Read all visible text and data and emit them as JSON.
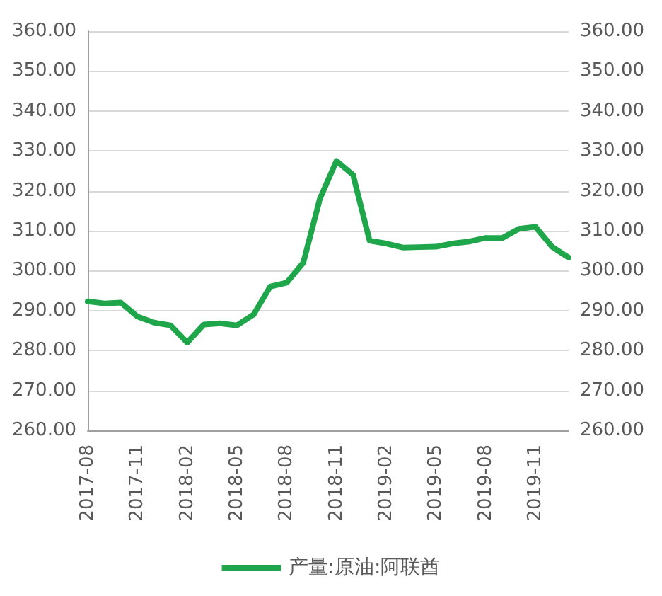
{
  "chart_data": {
    "type": "line",
    "categories": [
      "2017-08",
      null,
      null,
      "2017-11",
      null,
      null,
      "2018-02",
      null,
      null,
      "2018-05",
      null,
      null,
      "2018-08",
      null,
      null,
      "2018-11",
      null,
      null,
      "2019-02",
      null,
      null,
      "2019-05",
      null,
      null,
      "2019-08",
      null,
      null,
      "2019-11",
      null,
      null
    ],
    "series": [
      {
        "name": "产量:原油:阿联酋",
        "color": "#1fa64b",
        "values": [
          292.3,
          291.8,
          292,
          288.5,
          287,
          286.3,
          282,
          286.5,
          286.8,
          286.3,
          289,
          296,
          297,
          302,
          318,
          327.5,
          324,
          307.5,
          306.8,
          305.8,
          305.9,
          306,
          306.8,
          307.3,
          308.2,
          308.2,
          310.5,
          311,
          306,
          303.3
        ]
      }
    ],
    "ylim": [
      260,
      360
    ],
    "yticks": [
      {
        "value": 260,
        "label": "260.00"
      },
      {
        "value": 270,
        "label": "270.00"
      },
      {
        "value": 280,
        "label": "280.00"
      },
      {
        "value": 290,
        "label": "290.00"
      },
      {
        "value": 300,
        "label": "300.00"
      },
      {
        "value": 310,
        "label": "310.00"
      },
      {
        "value": 320,
        "label": "320.00"
      },
      {
        "value": 330,
        "label": "330.00"
      },
      {
        "value": 340,
        "label": "340.00"
      },
      {
        "value": 350,
        "label": "350.00"
      },
      {
        "value": 360,
        "label": "360.00"
      }
    ],
    "y2lim": [
      260,
      360
    ],
    "y2ticks": [
      {
        "value": 260,
        "label": "260.00"
      },
      {
        "value": 270,
        "label": "270.00"
      },
      {
        "value": 280,
        "label": "280.00"
      },
      {
        "value": 290,
        "label": "290.00"
      },
      {
        "value": 300,
        "label": "300.00"
      },
      {
        "value": 310,
        "label": "310.00"
      },
      {
        "value": 320,
        "label": "320.00"
      },
      {
        "value": 330,
        "label": "330.00"
      },
      {
        "value": 340,
        "label": "340.00"
      },
      {
        "value": 350,
        "label": "350.00"
      },
      {
        "value": 360,
        "label": "360.00"
      }
    ],
    "grid": "y",
    "legend": "bottom",
    "marker": "none",
    "line_style": "solid"
  }
}
